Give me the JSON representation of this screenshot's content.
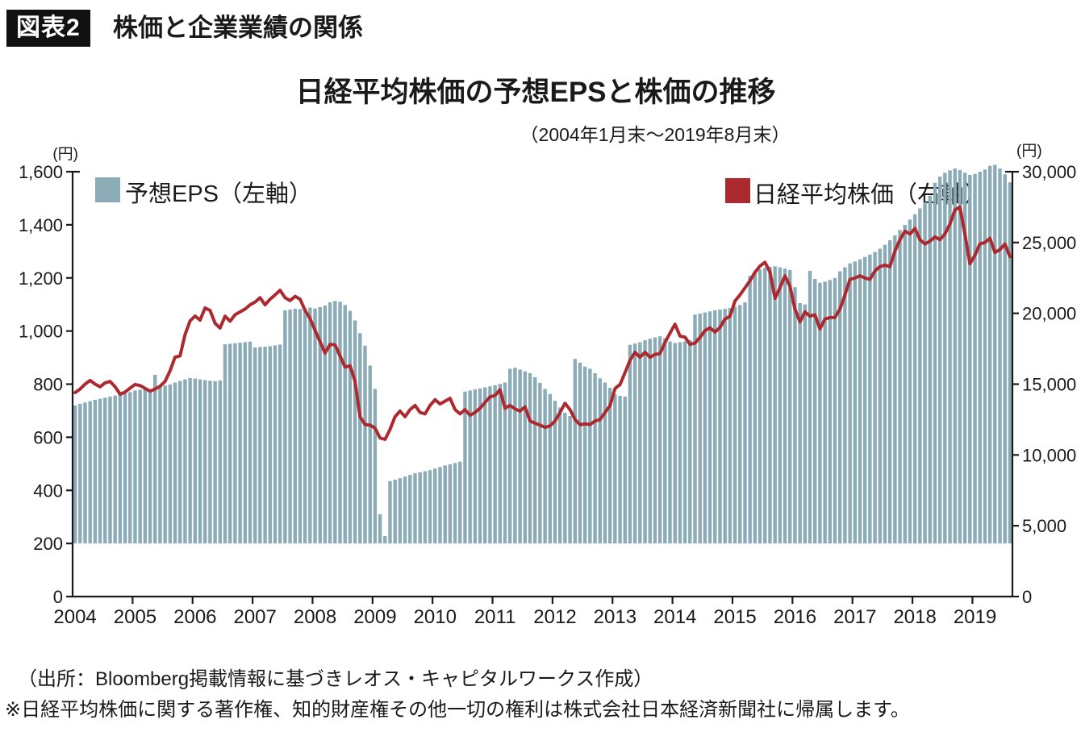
{
  "figure": {
    "badge": "図表2",
    "heading": "株価と企業業績の関係"
  },
  "chart": {
    "title": "日経平均株価の予想EPSと株価の推移",
    "subtitle": "（2004年1月末〜2019年8月末）",
    "left_unit": "(円)",
    "right_unit": "(円)"
  },
  "legend": {
    "eps": {
      "label": "予想EPS（左軸）",
      "color": "#8BABB6"
    },
    "nikkei": {
      "label": "日経平均株価（右軸）",
      "color": "#AC2A2F"
    }
  },
  "footer": {
    "source": "（出所：Bloomberg掲載情報に基づきレオス・キャピタルワークス作成）",
    "note": "※日経平均株価に関する著作権、知的財産権その他一切の権利は株式会社日本経済新聞社に帰属します。"
  },
  "chart_data": {
    "type": "bar",
    "x_start": "2004-01",
    "x_end": "2019-08",
    "x_interval": "monthly",
    "x_year_labels": [
      "2004",
      "2005",
      "2006",
      "2007",
      "2008",
      "2009",
      "2010",
      "2011",
      "2012",
      "2013",
      "2014",
      "2015",
      "2016",
      "2017",
      "2018",
      "2019"
    ],
    "left_axis": {
      "label": "(円)",
      "min": 0,
      "max": 1600,
      "tick_step": 200,
      "tick_labels": [
        "0",
        "200",
        "400",
        "600",
        "800",
        "1,000",
        "1,200",
        "1,400",
        "1,600"
      ]
    },
    "right_axis": {
      "label": "(円)",
      "min": 0,
      "max": 30000,
      "tick_step": 5000,
      "tick_labels": [
        "0",
        "5,000",
        "10,000",
        "15,000",
        "20,000",
        "25,000",
        "30,000"
      ]
    },
    "bar_baseline_left": 200,
    "grid": false,
    "legend_position": "top-inside",
    "series": [
      {
        "name": "予想EPS（左軸）",
        "type": "bar",
        "axis": "left",
        "color": "#8BABB6",
        "values": [
          720,
          726,
          731,
          736,
          741,
          745,
          749,
          753,
          757,
          761,
          765,
          770,
          776,
          779,
          781,
          778,
          835,
          792,
          795,
          799,
          806,
          812,
          818,
          823,
          821,
          818,
          815,
          813,
          811,
          814,
          950,
          952,
          954,
          956,
          958,
          960,
          938,
          940,
          941,
          943,
          946,
          949,
          1078,
          1081,
          1084,
          1083,
          1086,
          1088,
          1085,
          1090,
          1096,
          1108,
          1113,
          1110,
          1098,
          1076,
          1040,
          992,
          945,
          870,
          782,
          310,
          228,
          435,
          440,
          446,
          452,
          458,
          464,
          468,
          472,
          476,
          482,
          488,
          494,
          498,
          503,
          508,
          772,
          776,
          780,
          784,
          788,
          792,
          796,
          801,
          806,
          858,
          862,
          855,
          848,
          841,
          826,
          805,
          782,
          763,
          737,
          712,
          692,
          680,
          895,
          881,
          866,
          858,
          841,
          822,
          806,
          786,
          762,
          756,
          753,
          948,
          953,
          958,
          965,
          971,
          976,
          980,
          973,
          961,
          955,
          958,
          961,
          966,
          1062,
          1066,
          1070,
          1074,
          1078,
          1081,
          1084,
          1087,
          1092,
          1098,
          1108,
          1208,
          1220,
          1232,
          1238,
          1242,
          1244,
          1240,
          1235,
          1230,
          1165,
          1105,
          1100,
          1227,
          1196,
          1182,
          1186,
          1192,
          1200,
          1225,
          1240,
          1255,
          1262,
          1270,
          1279,
          1288,
          1298,
          1310,
          1325,
          1342,
          1360,
          1380,
          1400,
          1420,
          1440,
          1462,
          1485,
          1510,
          1558,
          1582,
          1596,
          1605,
          1612,
          1606,
          1596,
          1588,
          1592,
          1600,
          1608,
          1622,
          1626,
          1612,
          1590,
          1560
        ]
      },
      {
        "name": "日経平均株価（右軸）",
        "type": "line",
        "axis": "right",
        "color": "#AC2A2F",
        "values": [
          14400,
          14650,
          15000,
          15260,
          15000,
          14810,
          15090,
          15190,
          14810,
          14290,
          14440,
          14720,
          14980,
          14900,
          14700,
          14510,
          14650,
          14850,
          15190,
          15940,
          16900,
          17000,
          18500,
          19470,
          19810,
          19520,
          20380,
          20210,
          19300,
          18960,
          19800,
          19440,
          19900,
          20100,
          20300,
          20600,
          20800,
          21100,
          20600,
          21000,
          21300,
          21630,
          21100,
          20900,
          21200,
          21000,
          20200,
          19640,
          18800,
          18000,
          17200,
          17800,
          17780,
          17000,
          16200,
          16300,
          15200,
          12700,
          12150,
          12100,
          11900,
          11200,
          11100,
          11800,
          12700,
          13100,
          12700,
          13200,
          13500,
          13000,
          12900,
          13500,
          13900,
          13600,
          13800,
          14000,
          13200,
          12900,
          13200,
          12800,
          13000,
          13300,
          13700,
          14100,
          14200,
          14600,
          13300,
          13500,
          13250,
          13100,
          13400,
          12400,
          12250,
          12100,
          11950,
          12050,
          12400,
          13000,
          13650,
          13200,
          12500,
          12130,
          12200,
          12150,
          12400,
          12500,
          13000,
          13480,
          14690,
          14970,
          15800,
          16680,
          17250,
          16900,
          17250,
          16900,
          17100,
          17150,
          17930,
          18600,
          19230,
          18390,
          18320,
          17810,
          17900,
          18300,
          18780,
          18980,
          18680,
          19000,
          19600,
          19800,
          20870,
          21300,
          21800,
          22310,
          22900,
          23340,
          23600,
          22900,
          21060,
          21800,
          22650,
          21920,
          20300,
          19400,
          20100,
          19800,
          19900,
          18900,
          19600,
          19700,
          19700,
          20300,
          21300,
          22400,
          22500,
          22650,
          22500,
          22400,
          23000,
          23300,
          23400,
          23300,
          24400,
          25200,
          25800,
          25600,
          26000,
          25200,
          24900,
          25100,
          25400,
          25200,
          25600,
          26300,
          27300,
          27500,
          25600,
          23500,
          24100,
          24900,
          25000,
          25300,
          24300,
          24500,
          24900,
          24000
        ]
      }
    ]
  }
}
